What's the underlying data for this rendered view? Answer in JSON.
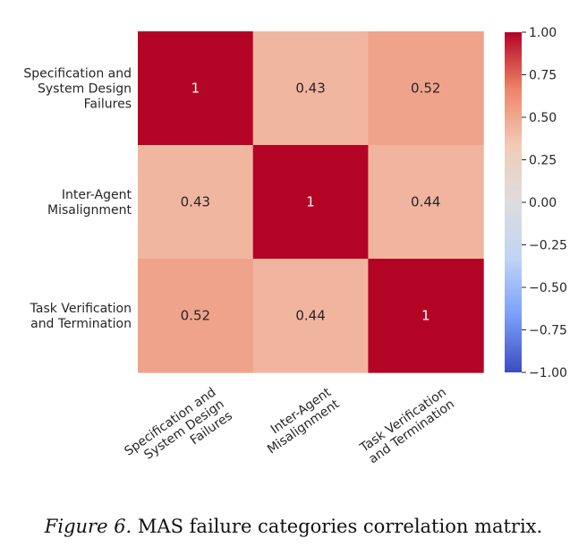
{
  "chart_data": {
    "type": "heatmap",
    "title": "",
    "rows": [
      [
        "Specification and",
        "System Design",
        "Failures"
      ],
      [
        "Inter-Agent",
        "Misalignment"
      ],
      [
        "Task Verification",
        "and Termination"
      ]
    ],
    "columns": [
      [
        "Specification and",
        "System Design",
        "Failures"
      ],
      [
        "Inter-Agent",
        "Misalignment"
      ],
      [
        "Task Verification",
        "and Termination"
      ]
    ],
    "values": [
      [
        1,
        0.43,
        0.52
      ],
      [
        0.43,
        1,
        0.44
      ],
      [
        0.52,
        0.44,
        1
      ]
    ],
    "cell_labels": [
      [
        "1",
        "0.43",
        "0.52"
      ],
      [
        "0.43",
        "1",
        "0.44"
      ],
      [
        "0.52",
        "0.44",
        "1"
      ]
    ],
    "colormap": "coolwarm",
    "colormap_stops": [
      "#3b4cc0",
      "#7b9ff9",
      "#c0d4f5",
      "#dddddd",
      "#f2cbb7",
      "#ee8468",
      "#b40426"
    ],
    "vmin": -1.0,
    "vmax": 1.0,
    "colorbar_ticks": [
      1.0,
      0.75,
      0.5,
      0.25,
      0.0,
      -0.25,
      -0.5,
      -0.75,
      -1.0
    ],
    "colorbar_tick_labels": [
      "1.00",
      "0.75",
      "0.50",
      "0.25",
      "0.00",
      "−0.25",
      "−0.50",
      "−0.75",
      "−1.00"
    ]
  },
  "caption": {
    "figure_label": "Figure 6.",
    "text": "MAS failure categories correlation matrix."
  }
}
